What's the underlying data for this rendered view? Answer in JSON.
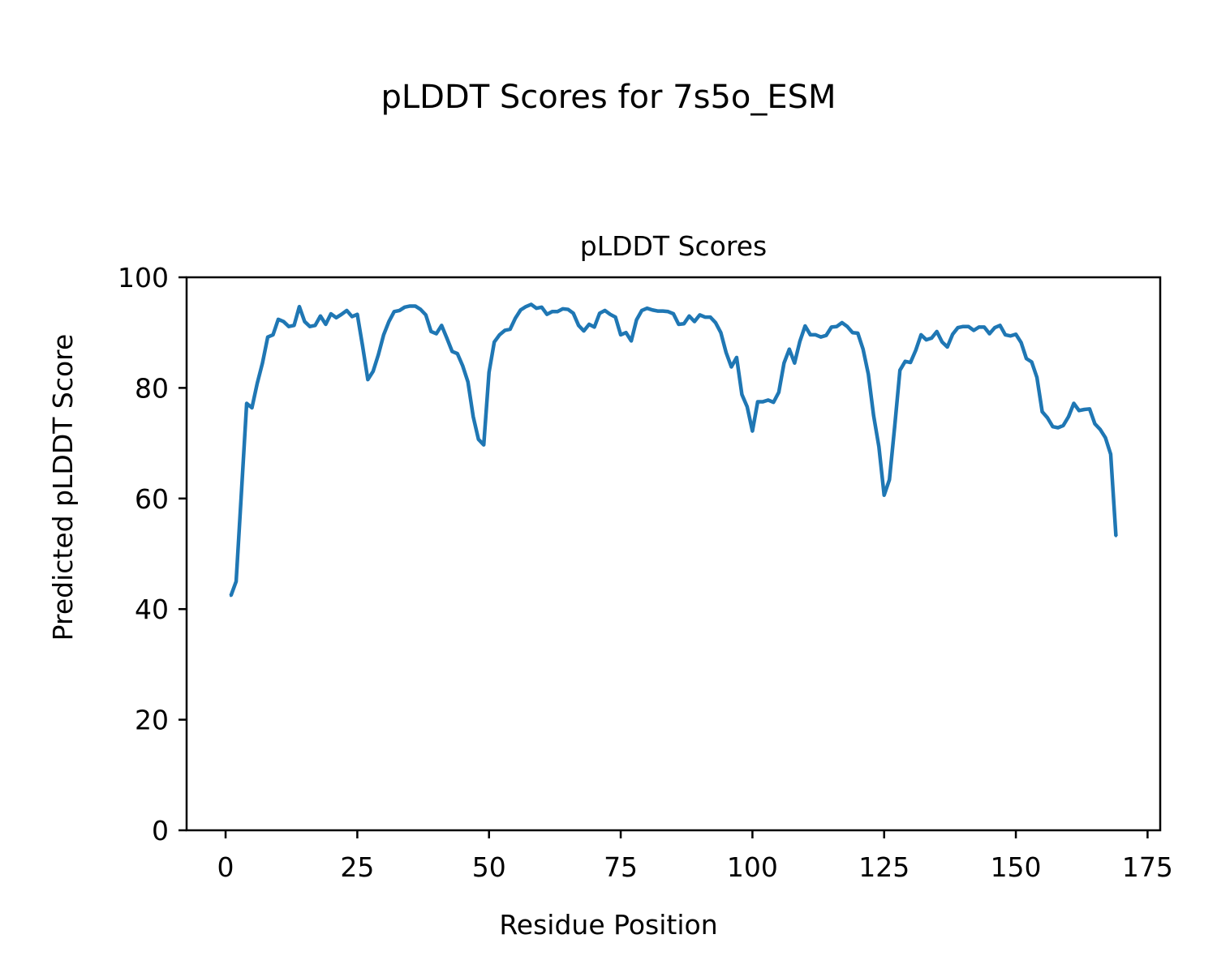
{
  "figure": {
    "suptitle": "pLDDT Scores for 7s5o_ESM"
  },
  "chart_data": {
    "type": "line",
    "title": "pLDDT Scores",
    "xlabel": "Residue Position",
    "ylabel": "Predicted pLDDT Score",
    "xlim": [
      -7.4,
      177.4
    ],
    "ylim": [
      0,
      100
    ],
    "xticks": [
      0,
      25,
      50,
      75,
      100,
      125,
      150,
      175
    ],
    "xtick_labels": [
      "0",
      "25",
      "50",
      "75",
      "100",
      "125",
      "150",
      "175"
    ],
    "yticks": [
      0,
      20,
      40,
      60,
      80,
      100
    ],
    "ytick_labels": [
      "0",
      "20",
      "40",
      "60",
      "80",
      "100"
    ],
    "grid": false,
    "legend": "none",
    "series": [
      {
        "color": "#1f77b4",
        "x_start": 1,
        "values": [
          42.4,
          45.0,
          61.0,
          77.2,
          76.4,
          80.8,
          84.5,
          89.2,
          89.6,
          92.4,
          92.0,
          91.1,
          91.3,
          94.7,
          92.0,
          91.1,
          91.3,
          93.0,
          91.5,
          93.4,
          92.7,
          93.3,
          94.0,
          92.9,
          93.3,
          87.6,
          81.5,
          83.0,
          86.0,
          89.6,
          92.0,
          93.8,
          94.0,
          94.6,
          94.8,
          94.8,
          94.2,
          93.2,
          90.2,
          89.8,
          91.3,
          89.0,
          86.6,
          86.2,
          84.0,
          81.1,
          74.8,
          70.7,
          69.7,
          82.8,
          88.3,
          89.6,
          90.4,
          90.6,
          92.6,
          94.1,
          94.7,
          95.1,
          94.4,
          94.6,
          93.3,
          93.8,
          93.8,
          94.3,
          94.2,
          93.5,
          91.3,
          90.3,
          91.5,
          91.0,
          93.5,
          94.0,
          93.3,
          92.8,
          89.6,
          90.0,
          88.5,
          92.3,
          94.0,
          94.4,
          94.1,
          93.9,
          93.9,
          93.8,
          93.4,
          91.5,
          91.6,
          93.0,
          92.0,
          93.2,
          92.8,
          92.8,
          91.8,
          90.0,
          86.4,
          83.8,
          85.5,
          78.8,
          76.6,
          72.2,
          77.5,
          77.5,
          77.8,
          77.4,
          79.2,
          84.5,
          87.0,
          84.5,
          88.4,
          91.2,
          89.6,
          89.6,
          89.2,
          89.5,
          91.0,
          91.1,
          91.8,
          91.1,
          90.0,
          89.9,
          87.0,
          82.5,
          75.0,
          69.4,
          60.6,
          63.4,
          73.0,
          83.2,
          84.8,
          84.6,
          86.8,
          89.6,
          88.7,
          89.0,
          90.2,
          88.3,
          87.4,
          89.7,
          90.9,
          91.1,
          91.1,
          90.4,
          91.0,
          91.0,
          89.8,
          90.9,
          91.3,
          89.6,
          89.4,
          89.7,
          88.2,
          85.3,
          84.7,
          81.9,
          75.7,
          74.6,
          73.0,
          72.8,
          73.2,
          74.8,
          77.2,
          75.9,
          76.1,
          76.2,
          73.5,
          72.5,
          71.0,
          68.0,
          53.2
        ]
      }
    ]
  }
}
